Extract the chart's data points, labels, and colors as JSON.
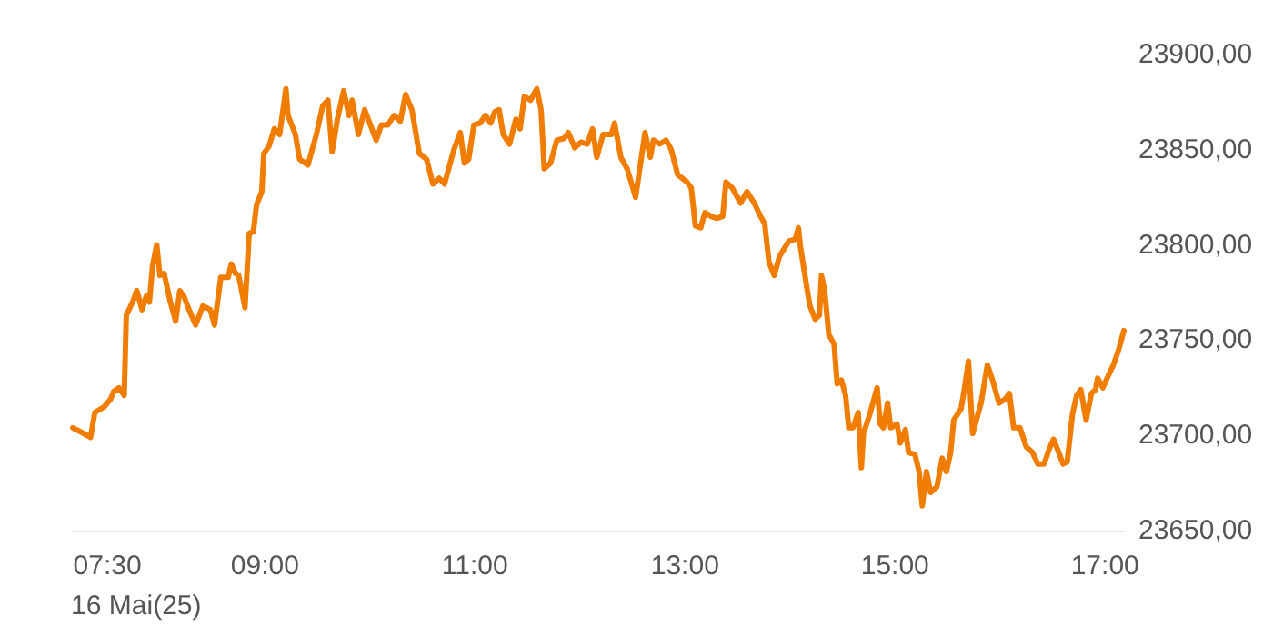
{
  "chart_data": {
    "type": "line",
    "x": [
      7.17,
      7.24,
      7.34,
      7.38,
      7.47,
      7.53,
      7.56,
      7.61,
      7.66,
      7.68,
      7.74,
      7.78,
      7.83,
      7.87,
      7.9,
      7.93,
      7.97,
      8.0,
      8.04,
      8.1,
      8.15,
      8.19,
      8.23,
      8.27,
      8.34,
      8.41,
      8.48,
      8.52,
      8.58,
      8.65,
      8.68,
      8.72,
      8.75,
      8.81,
      8.85,
      8.89,
      8.92,
      8.97,
      8.99,
      9.04,
      9.09,
      9.14,
      9.2,
      9.22,
      9.29,
      9.33,
      9.41,
      9.49,
      9.55,
      9.6,
      9.64,
      9.69,
      9.75,
      9.8,
      9.83,
      9.89,
      9.95,
      10.06,
      10.11,
      10.17,
      10.23,
      10.29,
      10.34,
      10.4,
      10.47,
      10.54,
      10.6,
      10.66,
      10.71,
      10.8,
      10.86,
      10.9,
      10.94,
      10.99,
      11.05,
      11.1,
      11.15,
      11.19,
      11.23,
      11.27,
      11.33,
      11.39,
      11.43,
      11.47,
      11.53,
      11.59,
      11.63,
      11.66,
      11.72,
      11.78,
      11.85,
      11.89,
      11.95,
      12.01,
      12.07,
      12.12,
      12.16,
      12.22,
      12.3,
      12.33,
      12.39,
      12.45,
      12.53,
      12.62,
      12.67,
      12.7,
      12.76,
      12.82,
      12.87,
      12.93,
      13.02,
      13.06,
      13.1,
      13.15,
      13.19,
      13.25,
      13.3,
      13.36,
      13.39,
      13.45,
      13.53,
      13.59,
      13.66,
      13.72,
      13.76,
      13.8,
      13.85,
      13.9,
      13.99,
      14.05,
      14.08,
      14.1,
      14.16,
      14.19,
      14.24,
      14.28,
      14.3,
      14.33,
      14.37,
      14.42,
      14.45,
      14.49,
      14.53,
      14.56,
      14.6,
      14.65,
      14.68,
      14.7,
      14.76,
      14.83,
      14.86,
      14.89,
      14.93,
      14.96,
      15.02,
      15.05,
      15.1,
      15.13,
      15.19,
      15.23,
      15.26,
      15.3,
      15.34,
      15.4,
      15.45,
      15.49,
      15.53,
      15.56,
      15.63,
      15.66,
      15.7,
      15.74,
      15.79,
      15.82,
      15.88,
      15.93,
      15.99,
      16.05,
      16.09,
      16.13,
      16.19,
      16.25,
      16.31,
      16.36,
      16.42,
      16.47,
      16.51,
      16.56,
      16.6,
      16.64,
      16.69,
      16.73,
      16.77,
      16.82,
      16.87,
      16.91,
      16.93,
      16.98,
      17.02,
      17.08,
      17.13,
      17.18
    ],
    "series": [
      {
        "color": "#f07d00",
        "values": [
          23704,
          23702,
          23699,
          23712,
          23715,
          23719,
          23723,
          23725,
          23721,
          23763,
          23770,
          23776,
          23766,
          23773,
          23770,
          23789,
          23800,
          23784,
          23785,
          23770,
          23760,
          23776,
          23773,
          23767,
          23758,
          23768,
          23766,
          23758,
          23783,
          23783,
          23790,
          23785,
          23784,
          23767,
          23806,
          23807,
          23821,
          23828,
          23848,
          23852,
          23861,
          23858,
          23882,
          23868,
          23858,
          23845,
          23842,
          23858,
          23873,
          23876,
          23849,
          23866,
          23881,
          23868,
          23876,
          23858,
          23871,
          23855,
          23863,
          23863,
          23868,
          23865,
          23879,
          23871,
          23848,
          23845,
          23832,
          23835,
          23832,
          23850,
          23859,
          23843,
          23845,
          23863,
          23864,
          23868,
          23864,
          23870,
          23871,
          23858,
          23853,
          23866,
          23861,
          23878,
          23876,
          23882,
          23871,
          23840,
          23843,
          23855,
          23856,
          23859,
          23851,
          23854,
          23853,
          23861,
          23846,
          23858,
          23858,
          23864,
          23846,
          23840,
          23825,
          23859,
          23846,
          23855,
          23853,
          23855,
          23850,
          23837,
          23833,
          23830,
          23810,
          23809,
          23817,
          23815,
          23814,
          23815,
          23833,
          23830,
          23822,
          23828,
          23822,
          23815,
          23811,
          23791,
          23784,
          23794,
          23802,
          23803,
          23809,
          23799,
          23778,
          23768,
          23761,
          23763,
          23784,
          23776,
          23753,
          23748,
          23727,
          23729,
          23721,
          23704,
          23704,
          23712,
          23683,
          23701,
          23711,
          23725,
          23706,
          23704,
          23717,
          23704,
          23706,
          23696,
          23703,
          23691,
          23690,
          23681,
          23663,
          23681,
          23670,
          23673,
          23688,
          23681,
          23691,
          23708,
          23714,
          23724,
          23739,
          23701,
          23711,
          23717,
          23737,
          23729,
          23717,
          23719,
          23722,
          23704,
          23704,
          23694,
          23691,
          23685,
          23685,
          23693,
          23698,
          23691,
          23685,
          23686,
          23711,
          23721,
          23724,
          23708,
          23722,
          23724,
          23730,
          23725,
          23730,
          23737,
          23745,
          23755
        ]
      }
    ],
    "xticks": [
      {
        "value": 7.5,
        "label": "07:30"
      },
      {
        "value": 9,
        "label": "09:00"
      },
      {
        "value": 11,
        "label": "11:00"
      },
      {
        "value": 13,
        "label": "13:00"
      },
      {
        "value": 15,
        "label": "15:00"
      },
      {
        "value": 17,
        "label": "17:00"
      }
    ],
    "xlim": [
      7.17,
      17.18
    ],
    "ylim": [
      23650,
      23900
    ],
    "yticks": [
      {
        "value": 23650,
        "label": "23650,00"
      },
      {
        "value": 23700,
        "label": "23700,00"
      },
      {
        "value": 23750,
        "label": "23750,00"
      },
      {
        "value": 23800,
        "label": "23800,00"
      },
      {
        "value": 23850,
        "label": "23850,00"
      },
      {
        "value": 23900,
        "label": "23900,00"
      }
    ],
    "annotations": [
      "16 Mai(25)"
    ],
    "grid": false,
    "marker": "none",
    "line_style": "solid"
  }
}
